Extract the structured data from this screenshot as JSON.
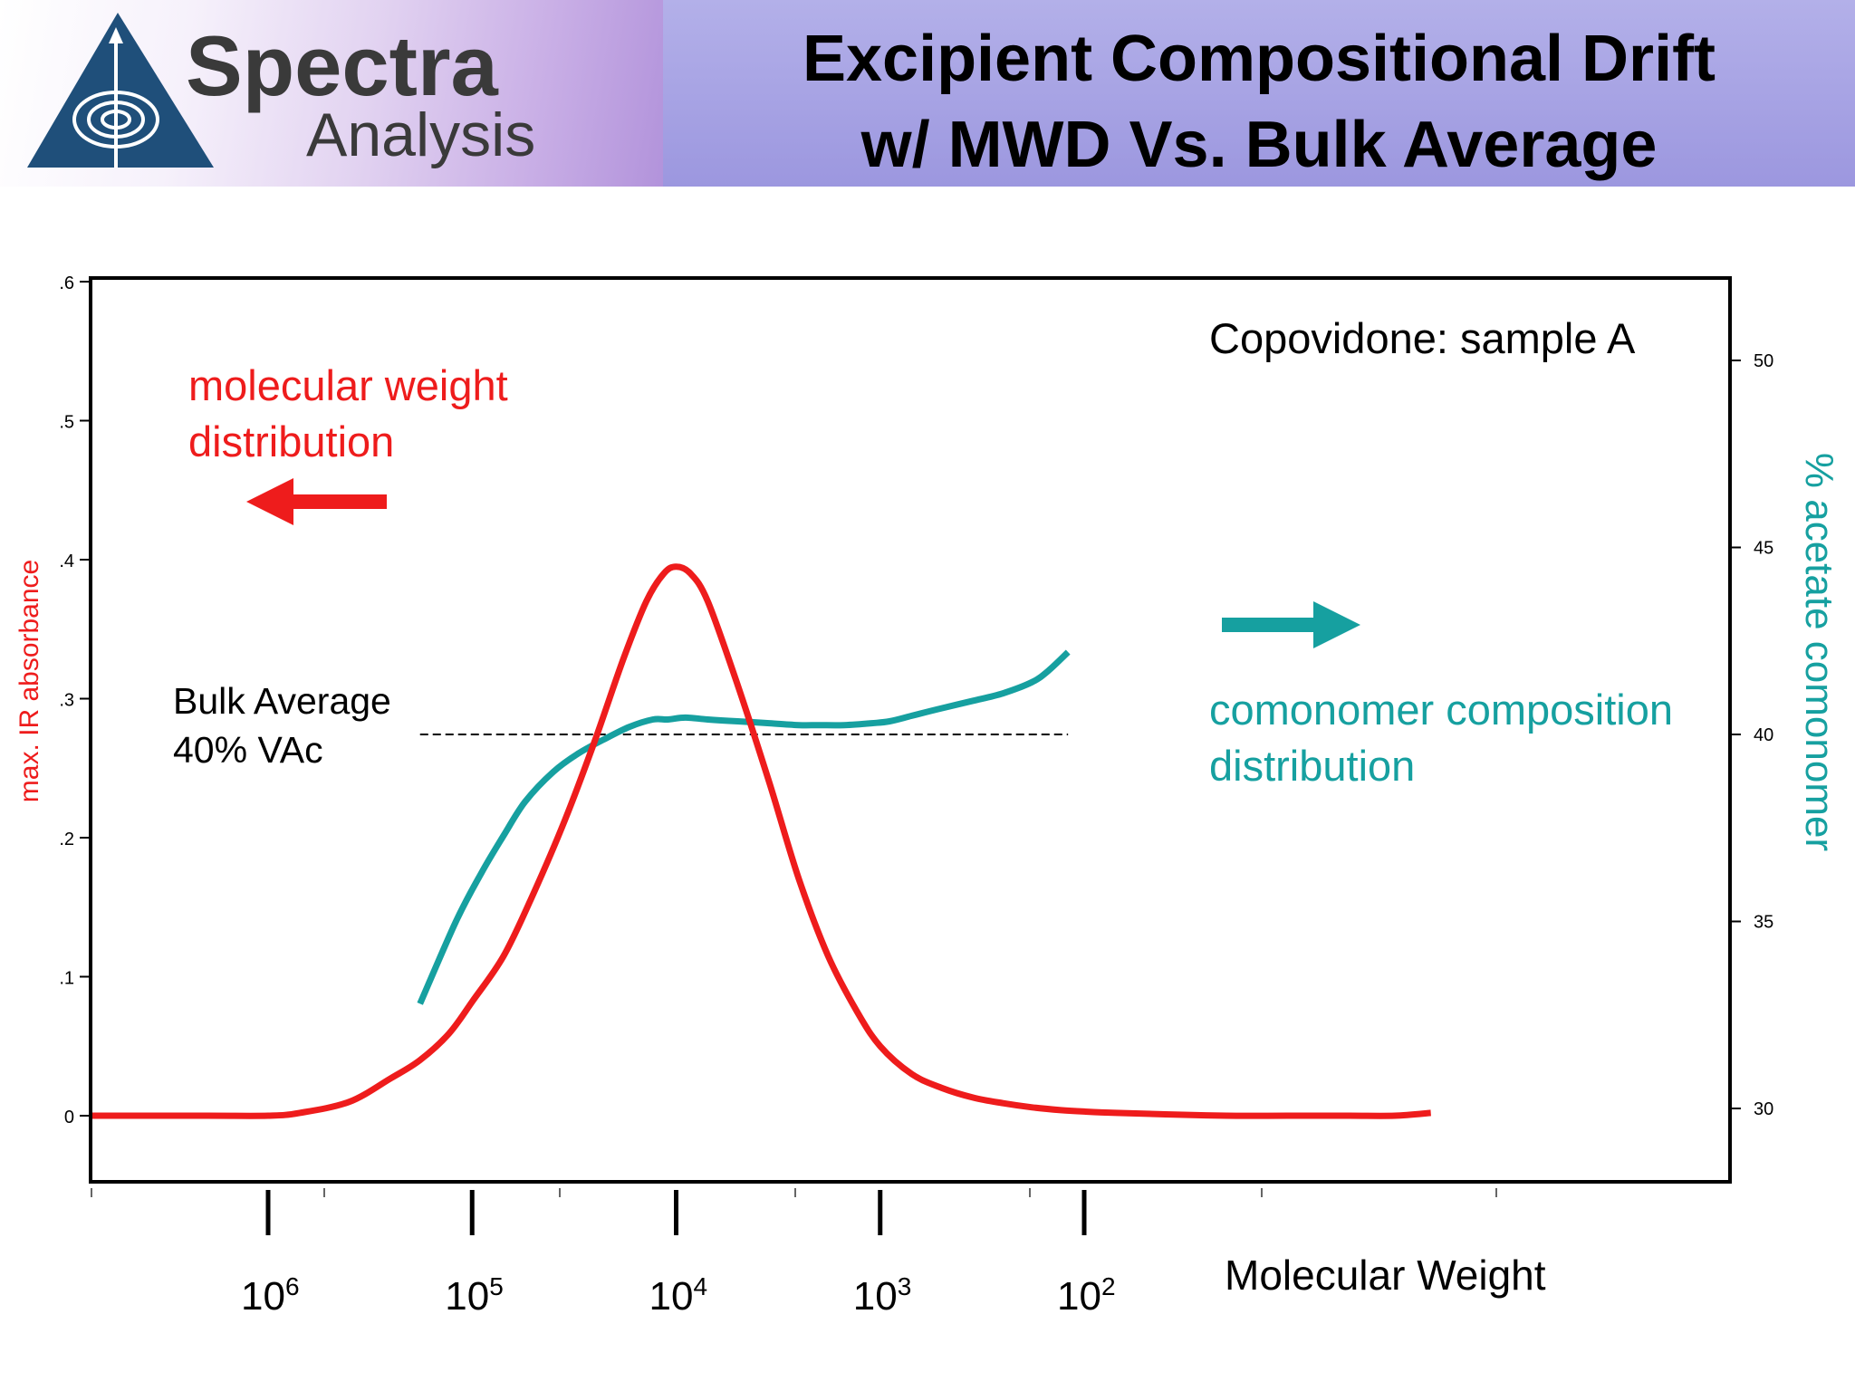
{
  "logo": {
    "line1": "Spectra",
    "line2": "Analysis",
    "icon": "triangle-spiral-logo-icon"
  },
  "title": {
    "line1": "Excipient Compositional Drift",
    "line2": "w/ MWD Vs. Bulk Average"
  },
  "colors": {
    "mwd": "#ee1c1c",
    "comonomer": "#16a0a0",
    "dashed": "#000000",
    "frame": "#000000"
  },
  "chart_data": {
    "type": "line",
    "title": "Copovidone: sample A",
    "xlabel": "Molecular Weight",
    "x_scale": "log, reversed (high MW on left)",
    "x_ticks": [
      {
        "value": 1000000,
        "base": "10",
        "exp": "6"
      },
      {
        "value": 100000,
        "base": "10",
        "exp": "5"
      },
      {
        "value": 10000,
        "base": "10",
        "exp": "4"
      },
      {
        "value": 1000,
        "base": "10",
        "exp": "3"
      },
      {
        "value": 100,
        "base": "10",
        "exp": "2"
      }
    ],
    "y_left": {
      "label": "max. IR absorbance",
      "ticks": [
        "0",
        ".1",
        ".2",
        ".3",
        ".4",
        ".5",
        ".6"
      ],
      "tick_values": [
        0,
        0.1,
        0.2,
        0.3,
        0.4,
        0.5,
        0.6
      ],
      "range": [
        -0.047,
        0.6
      ]
    },
    "y_right": {
      "label": "% acetate comonomer",
      "ticks": [
        "30",
        "35",
        "40",
        "45",
        "50"
      ],
      "tick_values": [
        30,
        35,
        40,
        45,
        50
      ],
      "range": [
        28.2,
        52.2
      ]
    },
    "annotations": {
      "mwd_label_line1": "molecular weight",
      "mwd_label_line2": "distribution",
      "comp_label_line1": "comonomer composition",
      "comp_label_line2": "distribution",
      "bulk_line1": "Bulk Average",
      "bulk_line2": "40% VAc"
    },
    "bulk_average": {
      "value": 40,
      "x_from": 180000,
      "x_to": 120
    },
    "series": [
      {
        "name": "molecular weight distribution",
        "axis": "left",
        "x": [
          10000000,
          2000000,
          1000000,
          700000,
          400000,
          250000,
          180000,
          130000,
          100000,
          70000,
          50000,
          35000,
          25000,
          18000,
          14000,
          11500,
          10000,
          8500,
          7000,
          5000,
          3500,
          2500,
          1800,
          1300,
          1000,
          700,
          500,
          350,
          250,
          180,
          130,
          100,
          70,
          40,
          20,
          10,
          5,
          3,
          2
        ],
        "values": [
          0.0,
          0.0,
          0.0,
          0.002,
          0.01,
          0.027,
          0.04,
          0.059,
          0.082,
          0.115,
          0.16,
          0.213,
          0.27,
          0.33,
          0.37,
          0.39,
          0.395,
          0.39,
          0.37,
          0.31,
          0.24,
          0.17,
          0.115,
          0.075,
          0.05,
          0.03,
          0.02,
          0.013,
          0.009,
          0.006,
          0.004,
          0.003,
          0.002,
          0.001,
          0.0,
          0.0,
          0.0,
          0.0,
          0.002
        ]
      },
      {
        "name": "comonomer composition distribution",
        "axis": "right",
        "x": [
          180000,
          120000,
          90000,
          70000,
          55000,
          40000,
          30000,
          22000,
          17000,
          13000,
          11000,
          9000,
          7000,
          5000,
          3500,
          2500,
          2000,
          1500,
          1100,
          900,
          700,
          500,
          350,
          250,
          180,
          150,
          120
        ],
        "values": [
          32.8,
          35.0,
          36.3,
          37.3,
          38.2,
          39.0,
          39.5,
          39.9,
          40.2,
          40.4,
          40.4,
          40.45,
          40.4,
          40.35,
          40.3,
          40.25,
          40.25,
          40.25,
          40.3,
          40.35,
          40.5,
          40.7,
          40.9,
          41.1,
          41.4,
          41.7,
          42.2
        ]
      }
    ]
  }
}
